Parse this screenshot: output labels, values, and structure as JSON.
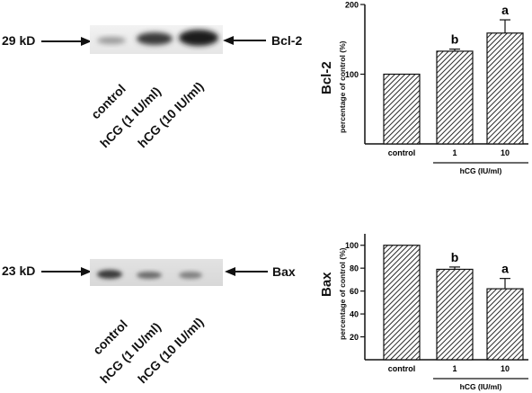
{
  "top": {
    "marker": "29 kD",
    "protein": "Bcl-2",
    "lanes": [
      "control",
      "hCG (1 IU/ml)",
      "hCG (10 IU/ml)"
    ],
    "chart_title": "Bcl-2",
    "ylabel": "percentage of control (%)"
  },
  "bottom": {
    "marker": "23 kD",
    "protein": "Bax",
    "lanes": [
      "control",
      "hCG (1 IU/ml)",
      "hCG (10 IU/ml)"
    ],
    "chart_title": "Bax",
    "ylabel": "percentage of control (%)"
  },
  "chart_data": [
    {
      "type": "bar",
      "title": "Bcl-2",
      "ylabel": "percentage of control (%)",
      "xlabel": "hCG (IU/ml)",
      "categories": [
        "control",
        "1",
        "10"
      ],
      "values": [
        100,
        133,
        159
      ],
      "errors": [
        0,
        3,
        19
      ],
      "annotations": [
        "",
        "b",
        "a"
      ],
      "ylim": [
        0,
        200
      ],
      "yticks": [
        100,
        200
      ],
      "grid": false
    },
    {
      "type": "bar",
      "title": "Bax",
      "ylabel": "percentage of control (%)",
      "xlabel": "hCG (IU/ml)",
      "categories": [
        "control",
        "1",
        "10"
      ],
      "values": [
        100,
        79,
        62
      ],
      "errors": [
        0,
        2,
        9
      ],
      "annotations": [
        "",
        "b",
        "a"
      ],
      "ylim": [
        0,
        110
      ],
      "yticks": [
        20,
        40,
        60,
        80,
        100
      ],
      "grid": false
    }
  ]
}
